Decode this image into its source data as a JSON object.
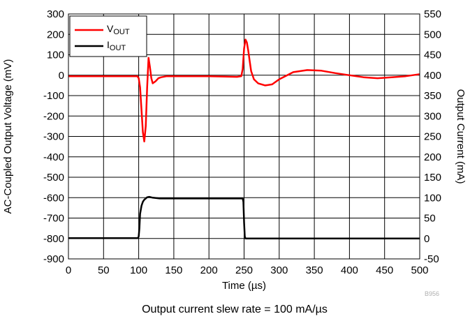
{
  "chart_data": {
    "type": "line",
    "xlabel": "Time (µs)",
    "ylabel_left": "AC-Coupled Output Voltage (mV)",
    "ylabel_right": "Output Current (mA)",
    "xlim": [
      0,
      500
    ],
    "ylim_left": [
      -900,
      300
    ],
    "ylim_right": [
      -50,
      550
    ],
    "x_ticks": [
      0,
      50,
      100,
      150,
      200,
      250,
      300,
      350,
      400,
      450,
      500
    ],
    "y_left_ticks": [
      300,
      200,
      100,
      0,
      -100,
      -200,
      -300,
      -400,
      -500,
      -600,
      -700,
      -800,
      -900
    ],
    "y_right_ticks": [
      550,
      500,
      450,
      400,
      350,
      300,
      250,
      200,
      150,
      100,
      50,
      0,
      -50
    ],
    "grid": true,
    "legend_position": "top-left",
    "series": [
      {
        "name": "VOUT",
        "label_main": "V",
        "label_sub": "OUT",
        "axis": "left",
        "color": "#ff0000",
        "x": [
          0,
          98,
          100,
          102,
          104,
          106,
          108,
          110,
          112,
          114,
          116,
          118,
          120,
          124,
          128,
          132,
          140,
          160,
          200,
          240,
          246,
          248,
          250,
          252,
          254,
          256,
          258,
          260,
          264,
          270,
          280,
          290,
          300,
          320,
          340,
          360,
          380,
          400,
          420,
          440,
          460,
          480,
          500
        ],
        "y": [
          -5,
          -5,
          -15,
          -60,
          -170,
          -280,
          -325,
          -250,
          -60,
          85,
          40,
          -15,
          -40,
          -30,
          -15,
          -10,
          -5,
          -5,
          -5,
          -8,
          -5,
          30,
          130,
          175,
          160,
          120,
          70,
          20,
          -20,
          -40,
          -50,
          -45,
          -20,
          15,
          25,
          22,
          10,
          0,
          -10,
          -15,
          -10,
          -5,
          5
        ]
      },
      {
        "name": "IOUT",
        "label_main": "I",
        "label_sub": "OUT",
        "axis": "right",
        "color": "#000000",
        "x": [
          0,
          99,
          100,
          101,
          102,
          104,
          106,
          108,
          110,
          112,
          115,
          120,
          130,
          200,
          248,
          249,
          250,
          251,
          252,
          260,
          300,
          500
        ],
        "y": [
          1,
          1,
          5,
          25,
          60,
          80,
          90,
          95,
          98,
          101,
          102,
          100,
          98,
          98,
          98,
          90,
          40,
          5,
          0,
          0,
          0,
          0
        ]
      }
    ],
    "figure_code": "B956"
  },
  "caption": "Output current slew rate = 100 mA/µs"
}
